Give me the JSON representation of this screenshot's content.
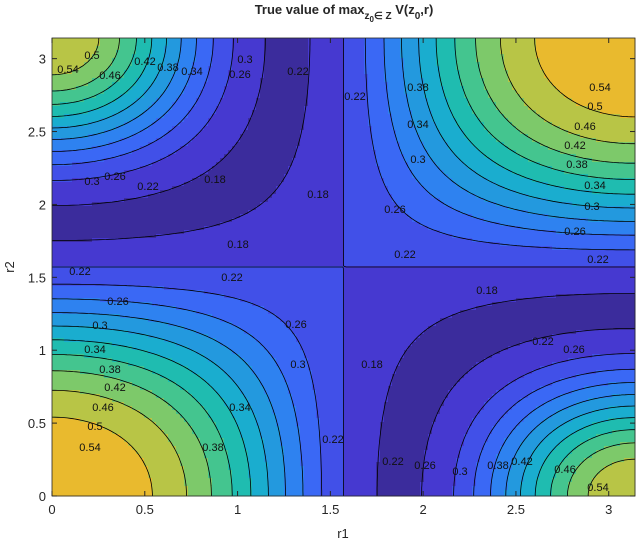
{
  "chart_data": {
    "type": "contour",
    "title_parts": [
      "True value of max",
      "z",
      "0",
      "∈ Z",
      " V(z",
      "0",
      ",r)"
    ],
    "xlabel": "r1",
    "ylabel": "r2",
    "xlim": [
      0,
      3.1416
    ],
    "ylim": [
      0,
      3.1416
    ],
    "xticks": [
      0,
      0.5,
      1,
      1.5,
      2,
      2.5,
      3
    ],
    "yticks": [
      0,
      0.5,
      1,
      1.5,
      2,
      2.5,
      3
    ],
    "levels": [
      0.18,
      0.22,
      0.26,
      0.3,
      0.34,
      0.38,
      0.42,
      0.46,
      0.5,
      0.54,
      0.58,
      0.62
    ],
    "colors": [
      "#3b2c9c",
      "#4639d0",
      "#4150e8",
      "#3a68f5",
      "#2e82f0",
      "#2399de",
      "#1aadcf",
      "#1fbcb0",
      "#44c58f",
      "#7dc96a",
      "#b8c546",
      "#e9ba2e",
      "#f9d82a"
    ],
    "line_color": "#000000"
  }
}
